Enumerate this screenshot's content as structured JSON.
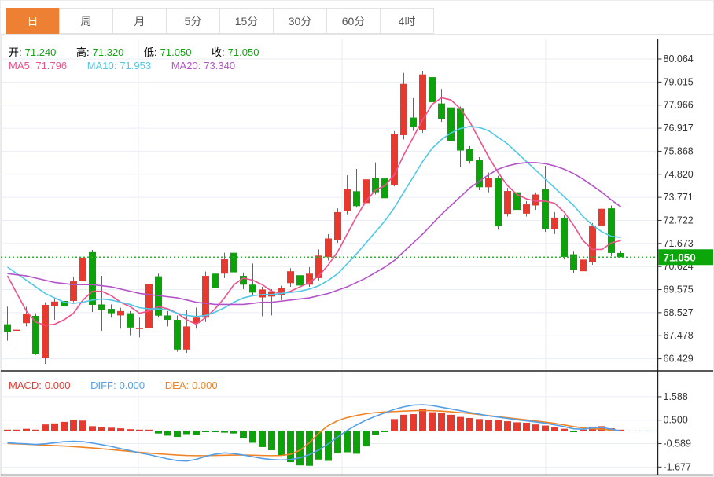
{
  "tabs": {
    "items": [
      {
        "label": "日",
        "active": true
      },
      {
        "label": "周",
        "active": false
      },
      {
        "label": "月",
        "active": false
      },
      {
        "label": "5分",
        "active": false
      },
      {
        "label": "15分",
        "active": false
      },
      {
        "label": "30分",
        "active": false
      },
      {
        "label": "60分",
        "active": false
      },
      {
        "label": "4时",
        "active": false
      }
    ]
  },
  "info": {
    "open_label": "开:",
    "open": "71.240",
    "high_label": "高:",
    "high": "71.320",
    "low_label": "低:",
    "low": "71.050",
    "close_label": "收:",
    "close": "71.050",
    "ma5_label": "MA5:",
    "ma5": "71.796",
    "ma10_label": "MA10:",
    "ma10": "71.953",
    "ma20_label": "MA20:",
    "ma20": "73.340"
  },
  "macd_info": {
    "macd_label": "MACD:",
    "macd": "0.000",
    "diff_label": "DIFF:",
    "diff": "0.000",
    "dea_label": "DEA:",
    "dea": "0.000"
  },
  "colors": {
    "up": "#e8392f",
    "down": "#0ca30a",
    "ma5": "#f0508c",
    "ma10": "#4fc8e8",
    "ma20": "#b452c8",
    "value_green": "#15a315",
    "label_dark": "#333333",
    "diff_blue": "#54a0e8",
    "dea_orange": "#ef8326",
    "tab_orange": "#ee8034",
    "grid": "#e9eef6",
    "zero_dash": "#aadcf0",
    "price_dotted": "#2ab82a",
    "badge_bg": "#0aa60a",
    "axis_text": "#333333",
    "frame": "#222222"
  },
  "chart_data": {
    "type": "candlestick+macd",
    "title": "",
    "legend": [
      "MA5",
      "MA10",
      "MA20",
      "MACD",
      "DIFF",
      "DEA"
    ],
    "grid": true,
    "last_price": 71.05,
    "last_price_label": "71.050",
    "price_axis_ticks": [
      80.064,
      79.015,
      77.966,
      76.917,
      75.868,
      74.82,
      73.771,
      72.722,
      71.673,
      70.624,
      69.575,
      68.527,
      67.478,
      66.429
    ],
    "macd_axis_ticks": [
      1.588,
      0.5,
      -0.589,
      -1.677
    ],
    "price_range": [
      66.429,
      80.064
    ],
    "macd_range": [
      -1.677,
      1.588
    ],
    "candles_ohlc": [
      [
        68.0,
        68.8,
        67.25,
        67.66
      ],
      [
        67.7,
        68.0,
        66.85,
        67.75
      ],
      [
        68.05,
        68.8,
        67.9,
        68.46
      ],
      [
        68.38,
        68.5,
        66.6,
        66.66
      ],
      [
        66.48,
        69.0,
        66.2,
        68.88
      ],
      [
        68.82,
        69.2,
        68.2,
        69.03
      ],
      [
        69.06,
        69.25,
        68.7,
        68.82
      ],
      [
        69.06,
        70.17,
        69.0,
        69.95
      ],
      [
        69.95,
        71.24,
        69.8,
        71.03
      ],
      [
        71.28,
        71.38,
        68.56,
        68.88
      ],
      [
        68.9,
        70.2,
        67.7,
        68.66
      ],
      [
        68.7,
        68.9,
        68.3,
        68.5
      ],
      [
        68.4,
        68.75,
        67.8,
        68.6
      ],
      [
        68.5,
        68.6,
        67.5,
        67.85
      ],
      [
        67.78,
        68.3,
        67.4,
        67.84
      ],
      [
        67.81,
        69.9,
        67.6,
        69.83
      ],
      [
        70.18,
        70.3,
        68.3,
        68.39
      ],
      [
        68.4,
        68.6,
        67.9,
        68.2
      ],
      [
        68.2,
        68.4,
        66.75,
        66.85
      ],
      [
        66.85,
        68.66,
        66.7,
        67.9
      ],
      [
        68.05,
        68.76,
        67.8,
        68.3
      ],
      [
        68.3,
        70.4,
        68.1,
        70.2
      ],
      [
        70.3,
        70.45,
        69.25,
        69.65
      ],
      [
        70.3,
        71.25,
        70.1,
        70.96
      ],
      [
        71.25,
        71.5,
        70.0,
        70.36
      ],
      [
        70.2,
        70.35,
        69.6,
        69.8
      ],
      [
        69.8,
        70.76,
        69.3,
        69.44
      ],
      [
        69.22,
        69.7,
        68.36,
        69.58
      ],
      [
        69.26,
        69.6,
        68.4,
        69.5
      ],
      [
        69.33,
        69.75,
        69.1,
        69.63
      ],
      [
        69.87,
        70.55,
        69.7,
        70.41
      ],
      [
        70.23,
        70.87,
        69.6,
        69.76
      ],
      [
        69.8,
        70.6,
        69.7,
        70.3
      ],
      [
        70.1,
        71.4,
        69.95,
        71.12
      ],
      [
        71.05,
        72.1,
        70.9,
        71.9
      ],
      [
        71.84,
        73.27,
        71.7,
        73.1
      ],
      [
        73.15,
        74.77,
        73.0,
        74.16
      ],
      [
        74.05,
        75.06,
        73.3,
        73.37
      ],
      [
        73.51,
        74.88,
        73.4,
        74.59
      ],
      [
        74.64,
        75.36,
        73.9,
        74.0
      ],
      [
        74.63,
        74.8,
        73.6,
        73.73
      ],
      [
        74.34,
        76.78,
        74.27,
        76.67
      ],
      [
        76.6,
        79.43,
        76.4,
        78.93
      ],
      [
        77.4,
        78.28,
        76.8,
        76.96
      ],
      [
        76.85,
        79.53,
        76.7,
        79.36
      ],
      [
        79.24,
        79.36,
        77.92,
        78.1
      ],
      [
        78.04,
        78.7,
        77.2,
        77.33
      ],
      [
        77.86,
        77.95,
        76.2,
        76.32
      ],
      [
        77.8,
        77.9,
        75.14,
        75.9
      ],
      [
        75.96,
        76.1,
        75.3,
        75.42
      ],
      [
        75.48,
        75.6,
        74.1,
        74.23
      ],
      [
        74.23,
        74.9,
        74.0,
        74.64
      ],
      [
        74.63,
        74.75,
        72.3,
        72.45
      ],
      [
        73.02,
        74.2,
        72.9,
        74.06
      ],
      [
        74.0,
        74.15,
        73.0,
        73.2
      ],
      [
        73.03,
        73.6,
        72.9,
        73.45
      ],
      [
        73.4,
        74.0,
        73.2,
        73.9
      ],
      [
        74.16,
        75.2,
        72.2,
        72.31
      ],
      [
        72.31,
        73.1,
        72.1,
        72.85
      ],
      [
        72.81,
        72.95,
        70.95,
        71.06
      ],
      [
        71.18,
        71.3,
        70.33,
        70.47
      ],
      [
        70.41,
        71.2,
        70.3,
        70.94
      ],
      [
        70.82,
        72.6,
        70.7,
        72.49
      ],
      [
        72.49,
        73.57,
        72.3,
        73.25
      ],
      [
        73.27,
        73.4,
        71.1,
        71.24
      ],
      [
        71.24,
        71.32,
        71.05,
        71.05
      ]
    ],
    "ma5_series": [
      70.2,
      69.4,
      68.6,
      68.1,
      67.95,
      68.0,
      68.2,
      68.5,
      69.1,
      69.5,
      69.5,
      69.3,
      69.0,
      68.8,
      68.5,
      68.6,
      68.8,
      68.7,
      68.5,
      68.2,
      68.0,
      68.3,
      68.7,
      69.2,
      69.8,
      70.1,
      70.0,
      69.8,
      69.5,
      69.4,
      69.5,
      69.7,
      69.9,
      70.2,
      70.7,
      71.3,
      72.1,
      72.9,
      73.6,
      74.1,
      74.3,
      74.8,
      75.7,
      76.5,
      77.3,
      78.0,
      78.3,
      78.2,
      77.8,
      77.2,
      76.4,
      75.6,
      74.9,
      74.3,
      73.9,
      73.7,
      73.6,
      73.6,
      73.5,
      73.1,
      72.5,
      71.8,
      71.4,
      71.4,
      71.7,
      71.8
    ],
    "ma10_series": [
      70.6,
      70.3,
      70.0,
      69.7,
      69.4,
      69.2,
      69.0,
      68.95,
      69.0,
      69.1,
      69.15,
      69.1,
      69.0,
      68.9,
      68.75,
      68.7,
      68.7,
      68.65,
      68.5,
      68.4,
      68.35,
      68.4,
      68.55,
      68.75,
      69.0,
      69.2,
      69.3,
      69.35,
      69.35,
      69.4,
      69.45,
      69.5,
      69.6,
      69.75,
      70.0,
      70.3,
      70.75,
      71.2,
      71.7,
      72.2,
      72.7,
      73.3,
      74.0,
      74.7,
      75.4,
      76.0,
      76.4,
      76.7,
      76.9,
      77.0,
      76.95,
      76.8,
      76.5,
      76.2,
      75.8,
      75.4,
      75.0,
      74.6,
      74.2,
      73.8,
      73.4,
      72.9,
      72.5,
      72.2,
      72.0,
      71.95
    ],
    "ma20_series": [
      70.3,
      70.25,
      70.2,
      70.1,
      70.0,
      69.9,
      69.85,
      69.8,
      69.8,
      69.8,
      69.75,
      69.7,
      69.6,
      69.5,
      69.4,
      69.35,
      69.3,
      69.25,
      69.2,
      69.1,
      69.0,
      68.95,
      68.9,
      68.9,
      68.9,
      68.9,
      68.95,
      69.0,
      69.0,
      69.05,
      69.1,
      69.15,
      69.2,
      69.3,
      69.4,
      69.55,
      69.7,
      69.9,
      70.1,
      70.35,
      70.6,
      70.9,
      71.3,
      71.7,
      72.1,
      72.55,
      73.0,
      73.4,
      73.8,
      74.2,
      74.5,
      74.8,
      75.05,
      75.2,
      75.3,
      75.35,
      75.35,
      75.3,
      75.2,
      75.05,
      74.85,
      74.6,
      74.3,
      74.0,
      73.65,
      73.34
    ],
    "macd_hist": [
      0.04,
      0.06,
      0.1,
      0.06,
      0.3,
      0.35,
      0.42,
      0.52,
      0.48,
      0.22,
      0.18,
      0.15,
      0.12,
      0.08,
      0.03,
      0.05,
      -0.12,
      -0.22,
      -0.28,
      -0.15,
      -0.18,
      -0.05,
      -0.03,
      -0.08,
      -0.12,
      -0.35,
      -0.55,
      -0.75,
      -0.9,
      -1.15,
      -1.45,
      -1.6,
      -1.62,
      -1.33,
      -1.39,
      -1.02,
      -0.99,
      -1.06,
      -0.72,
      -0.18,
      -0.05,
      0.55,
      0.75,
      0.78,
      1.03,
      0.87,
      0.82,
      0.75,
      0.65,
      0.6,
      0.55,
      0.52,
      0.5,
      0.45,
      0.4,
      0.38,
      0.3,
      0.25,
      0.18,
      0.1,
      -0.04,
      0.06,
      0.2,
      0.22,
      0.12,
      0.0
    ],
    "dif_series": [
      -0.55,
      -0.58,
      -0.6,
      -0.63,
      -0.6,
      -0.55,
      -0.5,
      -0.48,
      -0.5,
      -0.56,
      -0.64,
      -0.72,
      -0.82,
      -0.92,
      -1.02,
      -1.1,
      -1.2,
      -1.3,
      -1.38,
      -1.4,
      -1.32,
      -1.18,
      -1.08,
      -1.02,
      -1.05,
      -1.12,
      -1.2,
      -1.28,
      -1.33,
      -1.35,
      -1.33,
      -1.25,
      -1.1,
      -0.88,
      -0.6,
      -0.28,
      0.02,
      0.28,
      0.5,
      0.68,
      0.84,
      1.0,
      1.12,
      1.2,
      1.22,
      1.18,
      1.1,
      1.02,
      0.94,
      0.86,
      0.78,
      0.7,
      0.64,
      0.58,
      0.52,
      0.47,
      0.42,
      0.36,
      0.28,
      0.2,
      0.1,
      0.08,
      0.14,
      0.16,
      0.08,
      0.0
    ],
    "dea_series": [
      -0.58,
      -0.6,
      -0.62,
      -0.64,
      -0.66,
      -0.68,
      -0.7,
      -0.73,
      -0.76,
      -0.79,
      -0.83,
      -0.87,
      -0.91,
      -0.95,
      -0.99,
      -1.03,
      -1.06,
      -1.09,
      -1.12,
      -1.14,
      -1.15,
      -1.15,
      -1.14,
      -1.13,
      -1.12,
      -1.12,
      -1.13,
      -1.14,
      -1.15,
      -1.14,
      -1.08,
      -0.9,
      -0.55,
      -0.1,
      0.25,
      0.48,
      0.62,
      0.72,
      0.8,
      0.85,
      0.88,
      0.9,
      0.92,
      0.94,
      0.95,
      0.94,
      0.92,
      0.89,
      0.85,
      0.81,
      0.76,
      0.71,
      0.66,
      0.61,
      0.56,
      0.51,
      0.46,
      0.41,
      0.35,
      0.28,
      0.2,
      0.14,
      0.1,
      0.08,
      0.04,
      0.0
    ]
  }
}
